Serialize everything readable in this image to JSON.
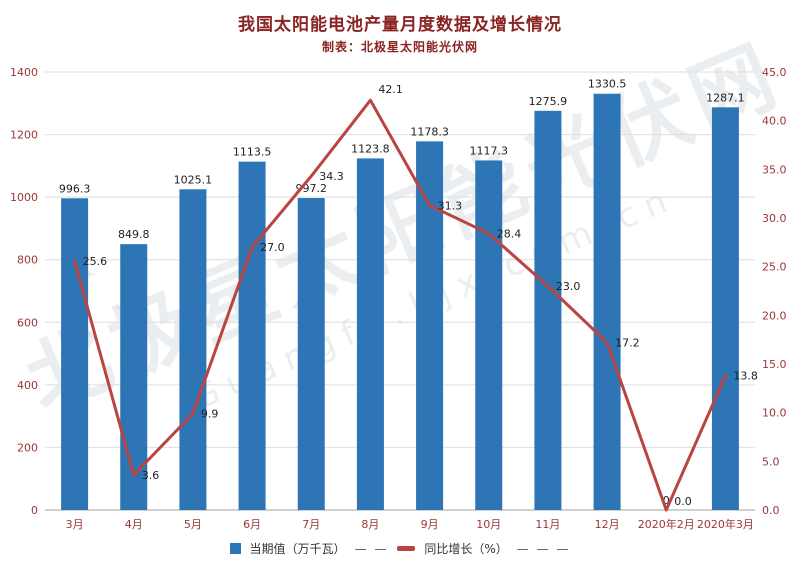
{
  "title": "我国太阳能电池产量月度数据及增长情况",
  "subtitle": "制表：北极星太阳能光伏网",
  "watermark": {
    "line1": "北极星太阳能光伏网",
    "line2": "Guangfu.bjx.com.cn",
    "star": "✦"
  },
  "legend": [
    {
      "label": "当期值（万千瓦）",
      "suffix": "— —",
      "color": "#2e75b6"
    },
    {
      "label": "同比增长（%）",
      "suffix": "— — —",
      "color": "#b94442"
    }
  ],
  "axes": {
    "left_ticks": [
      "0",
      "200",
      "400",
      "600",
      "800",
      "1000",
      "1200",
      "1400"
    ],
    "right_ticks": [
      "0.0",
      "5.0",
      "10.0",
      "15.0",
      "20.0",
      "25.0",
      "30.0",
      "35.0",
      "40.0",
      "45.0"
    ]
  },
  "chart_data": {
    "type": "bar+line",
    "title": "我国太阳能电池产量月度数据及增长情况",
    "subtitle": "制表：北极星太阳能光伏网",
    "categories": [
      "3月",
      "4月",
      "5月",
      "6月",
      "7月",
      "8月",
      "9月",
      "10月",
      "11月",
      "12月",
      "2020年2月",
      "2020年3月"
    ],
    "series": [
      {
        "name": "当期值（万千瓦）",
        "type": "bar",
        "axis": "left",
        "values": [
          996.3,
          849.8,
          1025.1,
          1113.5,
          997.2,
          1123.8,
          1178.3,
          1117.3,
          1275.9,
          1330.5,
          0,
          1287.1
        ],
        "labels": [
          "996.3",
          "849.8",
          "1025.1",
          "1113.5",
          "997.2",
          "1123.8",
          "1178.3",
          "1117.3",
          "1275.9",
          "1330.5",
          "0",
          "1287.1"
        ]
      },
      {
        "name": "同比增长（%）",
        "type": "line",
        "axis": "right",
        "values": [
          25.6,
          3.6,
          9.9,
          27.0,
          34.3,
          42.1,
          31.3,
          28.4,
          23.0,
          17.2,
          0.0,
          13.8
        ],
        "labels": [
          "25.6",
          "3.6",
          "9.9",
          "27.0",
          "34.3",
          "42.1",
          "31.3",
          "28.4",
          "23.0",
          "17.2",
          "0.0",
          "13.8"
        ]
      }
    ],
    "left_axis": {
      "min": 0,
      "max": 1400,
      "step": 200
    },
    "right_axis": {
      "min": 0,
      "max": 45,
      "step": 5
    },
    "grid": true,
    "legend_position": "bottom"
  },
  "colors": {
    "bar": "#2e75b6",
    "line": "#b94442",
    "axis_text": "#9c3636",
    "title": "#8b2323",
    "grid": "#dedede",
    "baseline": "#a0a0a0",
    "data_label": "#1f1f1f"
  }
}
